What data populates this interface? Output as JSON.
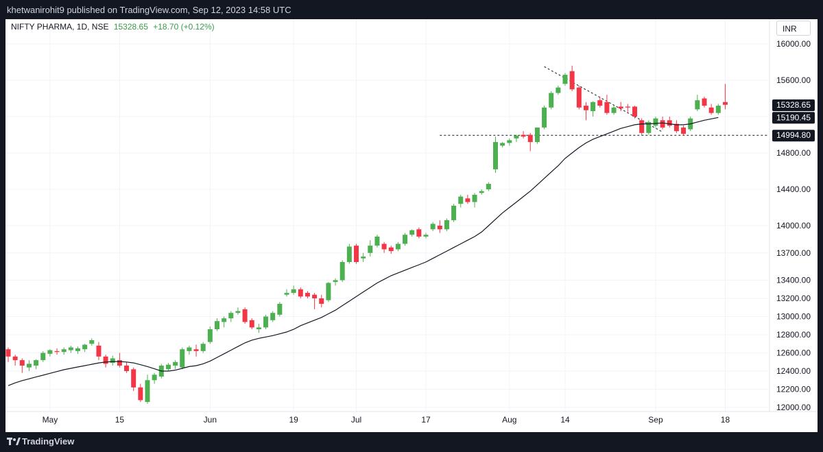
{
  "header": {
    "publisher_line": "khetwanirohit9 published on TradingView.com, Sep 12, 2023 14:58 UTC"
  },
  "legend": {
    "symbol": "NIFTY PHARMA, 1D, NSE",
    "last": "15328.65",
    "change": "+18.70 (+0.12%)"
  },
  "currency": "INR",
  "footer": {
    "brand": "TradingView"
  },
  "colors": {
    "up": "#4caf50",
    "down": "#f23645",
    "sma": "#131722",
    "background": "#ffffff",
    "frame": "#131722",
    "tag_bg": "#131722"
  },
  "chart_data": {
    "type": "candlestick",
    "title": "NIFTY PHARMA, 1D, NSE",
    "ylim": [
      12000,
      16300
    ],
    "y_ticks": [
      12000,
      12200,
      12400,
      12600,
      12800,
      13000,
      13200,
      13400,
      13700,
      14000,
      14400,
      14800,
      15200,
      15600,
      16000
    ],
    "y_tick_labels": [
      "12000.00",
      "12200.00",
      "12400.00",
      "12600.00",
      "12800.00",
      "13000.00",
      "13200.00",
      "13400.00",
      "13700.00",
      "14000.00",
      "14400.00",
      "14800.00",
      "15200.00",
      "15600.00",
      "16000.00"
    ],
    "x_ticks": [
      {
        "label": "May",
        "index": 6
      },
      {
        "label": "15",
        "index": 16
      },
      {
        "label": "Jun",
        "index": 29
      },
      {
        "label": "19",
        "index": 41
      },
      {
        "label": "Jul",
        "index": 50
      },
      {
        "label": "17",
        "index": 60
      },
      {
        "label": "Aug",
        "index": 72
      },
      {
        "label": "14",
        "index": 80
      },
      {
        "label": "Sep",
        "index": 93
      },
      {
        "label": "18",
        "index": 103
      }
    ],
    "price_tags": [
      {
        "label": "15328.65",
        "value": 15328.65
      },
      {
        "label": "15190.45",
        "value": 15190.45
      },
      {
        "label": "14994.80",
        "value": 14994.8
      }
    ],
    "support_level": 14994.8,
    "trendline": [
      [
        77,
        15750
      ],
      [
        94,
        15030
      ]
    ],
    "candles": [
      {
        "o": 12640,
        "h": 12660,
        "l": 12500,
        "c": 12560
      },
      {
        "o": 12560,
        "h": 12580,
        "l": 12460,
        "c": 12520
      },
      {
        "o": 12520,
        "h": 12540,
        "l": 12380,
        "c": 12460
      },
      {
        "o": 12440,
        "h": 12520,
        "l": 12400,
        "c": 12480
      },
      {
        "o": 12460,
        "h": 12530,
        "l": 12420,
        "c": 12520
      },
      {
        "o": 12520,
        "h": 12620,
        "l": 12500,
        "c": 12600
      },
      {
        "o": 12590,
        "h": 12640,
        "l": 12560,
        "c": 12630
      },
      {
        "o": 12620,
        "h": 12650,
        "l": 12580,
        "c": 12610
      },
      {
        "o": 12610,
        "h": 12660,
        "l": 12580,
        "c": 12640
      },
      {
        "o": 12630,
        "h": 12680,
        "l": 12600,
        "c": 12660
      },
      {
        "o": 12620,
        "h": 12670,
        "l": 12590,
        "c": 12650
      },
      {
        "o": 12640,
        "h": 12700,
        "l": 12610,
        "c": 12690
      },
      {
        "o": 12700,
        "h": 12760,
        "l": 12680,
        "c": 12740
      },
      {
        "o": 12680,
        "h": 12720,
        "l": 12520,
        "c": 12560
      },
      {
        "o": 12560,
        "h": 12580,
        "l": 12440,
        "c": 12480
      },
      {
        "o": 12490,
        "h": 12570,
        "l": 12460,
        "c": 12540
      },
      {
        "o": 12520,
        "h": 12600,
        "l": 12440,
        "c": 12460
      },
      {
        "o": 12460,
        "h": 12500,
        "l": 12380,
        "c": 12400
      },
      {
        "o": 12420,
        "h": 12440,
        "l": 12180,
        "c": 12220
      },
      {
        "o": 12220,
        "h": 12260,
        "l": 12060,
        "c": 12080
      },
      {
        "o": 12060,
        "h": 12360,
        "l": 12040,
        "c": 12300
      },
      {
        "o": 12300,
        "h": 12380,
        "l": 12260,
        "c": 12360
      },
      {
        "o": 12340,
        "h": 12480,
        "l": 12320,
        "c": 12460
      },
      {
        "o": 12420,
        "h": 12490,
        "l": 12400,
        "c": 12470
      },
      {
        "o": 12460,
        "h": 12520,
        "l": 12420,
        "c": 12500
      },
      {
        "o": 12440,
        "h": 12660,
        "l": 12420,
        "c": 12640
      },
      {
        "o": 12620,
        "h": 12680,
        "l": 12580,
        "c": 12660
      },
      {
        "o": 12640,
        "h": 12690,
        "l": 12560,
        "c": 12620
      },
      {
        "o": 12620,
        "h": 12720,
        "l": 12600,
        "c": 12700
      },
      {
        "o": 12720,
        "h": 12890,
        "l": 12700,
        "c": 12860
      },
      {
        "o": 12860,
        "h": 12980,
        "l": 12840,
        "c": 12950
      },
      {
        "o": 12940,
        "h": 13000,
        "l": 12880,
        "c": 12980
      },
      {
        "o": 12980,
        "h": 13060,
        "l": 12940,
        "c": 13040
      },
      {
        "o": 13040,
        "h": 13100,
        "l": 13020,
        "c": 13060
      },
      {
        "o": 13080,
        "h": 13100,
        "l": 12920,
        "c": 12940
      },
      {
        "o": 12960,
        "h": 12980,
        "l": 12860,
        "c": 12880
      },
      {
        "o": 12860,
        "h": 12920,
        "l": 12820,
        "c": 12880
      },
      {
        "o": 12880,
        "h": 13020,
        "l": 12860,
        "c": 13000
      },
      {
        "o": 12960,
        "h": 13060,
        "l": 12940,
        "c": 13040
      },
      {
        "o": 13020,
        "h": 13160,
        "l": 13000,
        "c": 13140
      },
      {
        "o": 13240,
        "h": 13300,
        "l": 13220,
        "c": 13260
      },
      {
        "o": 13260,
        "h": 13340,
        "l": 13240,
        "c": 13300
      },
      {
        "o": 13300,
        "h": 13320,
        "l": 13200,
        "c": 13220
      },
      {
        "o": 13260,
        "h": 13280,
        "l": 13200,
        "c": 13220
      },
      {
        "o": 13240,
        "h": 13260,
        "l": 13080,
        "c": 13200
      },
      {
        "o": 13200,
        "h": 13240,
        "l": 13100,
        "c": 13140
      },
      {
        "o": 13180,
        "h": 13380,
        "l": 13160,
        "c": 13370
      },
      {
        "o": 13380,
        "h": 13420,
        "l": 13340,
        "c": 13400
      },
      {
        "o": 13400,
        "h": 13620,
        "l": 13380,
        "c": 13600
      },
      {
        "o": 13600,
        "h": 13800,
        "l": 13580,
        "c": 13770
      },
      {
        "o": 13780,
        "h": 13800,
        "l": 13580,
        "c": 13600
      },
      {
        "o": 13640,
        "h": 13700,
        "l": 13600,
        "c": 13660
      },
      {
        "o": 13700,
        "h": 13840,
        "l": 13660,
        "c": 13780
      },
      {
        "o": 13780,
        "h": 13900,
        "l": 13760,
        "c": 13880
      },
      {
        "o": 13800,
        "h": 13820,
        "l": 13700,
        "c": 13740
      },
      {
        "o": 13760,
        "h": 13780,
        "l": 13690,
        "c": 13720
      },
      {
        "o": 13740,
        "h": 13820,
        "l": 13720,
        "c": 13800
      },
      {
        "o": 13800,
        "h": 13920,
        "l": 13780,
        "c": 13900
      },
      {
        "o": 13900,
        "h": 13960,
        "l": 13880,
        "c": 13950
      },
      {
        "o": 13960,
        "h": 13980,
        "l": 13860,
        "c": 13880
      },
      {
        "o": 13880,
        "h": 13920,
        "l": 13860,
        "c": 13900
      },
      {
        "o": 13960,
        "h": 14040,
        "l": 13940,
        "c": 14020
      },
      {
        "o": 14000,
        "h": 14060,
        "l": 13920,
        "c": 13960
      },
      {
        "o": 13960,
        "h": 14080,
        "l": 13940,
        "c": 14060
      },
      {
        "o": 14060,
        "h": 14240,
        "l": 14040,
        "c": 14220
      },
      {
        "o": 14240,
        "h": 14340,
        "l": 14200,
        "c": 14320
      },
      {
        "o": 14300,
        "h": 14340,
        "l": 14240,
        "c": 14260
      },
      {
        "o": 14260,
        "h": 14360,
        "l": 14200,
        "c": 14340
      },
      {
        "o": 14360,
        "h": 14400,
        "l": 14340,
        "c": 14380
      },
      {
        "o": 14400,
        "h": 14480,
        "l": 14380,
        "c": 14460
      },
      {
        "o": 14620,
        "h": 14980,
        "l": 14580,
        "c": 14920
      },
      {
        "o": 14880,
        "h": 14920,
        "l": 14860,
        "c": 14910
      },
      {
        "o": 14910,
        "h": 14960,
        "l": 14880,
        "c": 14940
      },
      {
        "o": 14960,
        "h": 15000,
        "l": 14920,
        "c": 14990
      },
      {
        "o": 15000,
        "h": 15040,
        "l": 14960,
        "c": 14980
      },
      {
        "o": 15000,
        "h": 15020,
        "l": 14820,
        "c": 14920
      },
      {
        "o": 14920,
        "h": 15080,
        "l": 14900,
        "c": 15080
      },
      {
        "o": 15080,
        "h": 15320,
        "l": 15060,
        "c": 15300
      },
      {
        "o": 15300,
        "h": 15480,
        "l": 15280,
        "c": 15460
      },
      {
        "o": 15460,
        "h": 15540,
        "l": 15440,
        "c": 15520
      },
      {
        "o": 15560,
        "h": 15680,
        "l": 15540,
        "c": 15660
      },
      {
        "o": 15700,
        "h": 15760,
        "l": 15480,
        "c": 15500
      },
      {
        "o": 15520,
        "h": 15540,
        "l": 15280,
        "c": 15300
      },
      {
        "o": 15320,
        "h": 15360,
        "l": 15160,
        "c": 15270
      },
      {
        "o": 15260,
        "h": 15370,
        "l": 15200,
        "c": 15360
      },
      {
        "o": 15380,
        "h": 15420,
        "l": 15300,
        "c": 15320
      },
      {
        "o": 15360,
        "h": 15440,
        "l": 15220,
        "c": 15240
      },
      {
        "o": 15240,
        "h": 15320,
        "l": 15220,
        "c": 15300
      },
      {
        "o": 15310,
        "h": 15360,
        "l": 15260,
        "c": 15290
      },
      {
        "o": 15310,
        "h": 15340,
        "l": 15250,
        "c": 15300
      },
      {
        "o": 15310,
        "h": 15320,
        "l": 15180,
        "c": 15200
      },
      {
        "o": 15160,
        "h": 15180,
        "l": 15000,
        "c": 15020
      },
      {
        "o": 15020,
        "h": 15160,
        "l": 15000,
        "c": 15140
      },
      {
        "o": 15100,
        "h": 15200,
        "l": 15080,
        "c": 15180
      },
      {
        "o": 15160,
        "h": 15200,
        "l": 15060,
        "c": 15080
      },
      {
        "o": 15160,
        "h": 15200,
        "l": 15080,
        "c": 15100
      },
      {
        "o": 15120,
        "h": 15160,
        "l": 15020,
        "c": 15040
      },
      {
        "o": 15080,
        "h": 15100,
        "l": 14990,
        "c": 15010
      },
      {
        "o": 15060,
        "h": 15200,
        "l": 15040,
        "c": 15180
      },
      {
        "o": 15280,
        "h": 15440,
        "l": 15260,
        "c": 15380
      },
      {
        "o": 15400,
        "h": 15420,
        "l": 15300,
        "c": 15320
      },
      {
        "o": 15300,
        "h": 15340,
        "l": 15220,
        "c": 15240
      },
      {
        "o": 15240,
        "h": 15340,
        "l": 15220,
        "c": 15320
      },
      {
        "o": 15360,
        "h": 15560,
        "l": 15280,
        "c": 15330
      }
    ],
    "sma": [
      12240,
      12270,
      12295,
      12315,
      12335,
      12355,
      12375,
      12395,
      12415,
      12430,
      12445,
      12460,
      12475,
      12490,
      12500,
      12505,
      12505,
      12500,
      12490,
      12470,
      12450,
      12425,
      12400,
      12400,
      12410,
      12430,
      12450,
      12460,
      12480,
      12510,
      12550,
      12590,
      12630,
      12670,
      12710,
      12740,
      12760,
      12775,
      12790,
      12810,
      12830,
      12860,
      12900,
      12930,
      12960,
      12990,
      13030,
      13070,
      13120,
      13170,
      13220,
      13270,
      13320,
      13370,
      13410,
      13450,
      13480,
      13510,
      13540,
      13570,
      13600,
      13640,
      13680,
      13720,
      13760,
      13800,
      13840,
      13880,
      13930,
      14000,
      14070,
      14140,
      14200,
      14260,
      14320,
      14380,
      14450,
      14520,
      14590,
      14660,
      14740,
      14800,
      14860,
      14910,
      14950,
      14980,
      15010,
      15040,
      15070,
      15090,
      15110,
      15120,
      15120,
      15125,
      15130,
      15120,
      15110,
      15110,
      15120,
      15140,
      15160,
      15175,
      15190
    ]
  }
}
